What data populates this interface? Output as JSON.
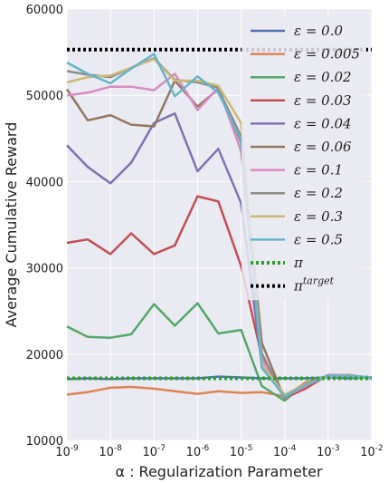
{
  "chart_data": {
    "type": "line",
    "xlabel": "α : Regularization Parameter",
    "ylabel": "Average Cumulative Reward",
    "xscale": "log",
    "xlim": [
      1e-09,
      0.01
    ],
    "ylim": [
      10000,
      60000
    ],
    "grid": true,
    "background": "#eaeaf2",
    "legend_position": "upper-right",
    "y_ticks": [
      "10000",
      "20000",
      "30000",
      "40000",
      "50000",
      "60000"
    ],
    "x_ticks": [
      {
        "base": "10",
        "exp": "-9"
      },
      {
        "base": "10",
        "exp": "-8"
      },
      {
        "base": "10",
        "exp": "-7"
      },
      {
        "base": "10",
        "exp": "-6"
      },
      {
        "base": "10",
        "exp": "-5"
      },
      {
        "base": "10",
        "exp": "-4"
      },
      {
        "base": "10",
        "exp": "-3"
      },
      {
        "base": "10",
        "exp": "-2"
      }
    ],
    "x": [
      1e-09,
      3e-09,
      1e-08,
      3e-08,
      1e-07,
      3e-07,
      1e-06,
      3e-06,
      1e-05,
      3e-05,
      0.0001,
      0.0003,
      0.001,
      0.003,
      0.01
    ],
    "series": [
      {
        "name": "ε = 0.0",
        "label_main": "ε = 0.0",
        "label_sup": "",
        "color": "#4c72b0",
        "dash": "",
        "values": [
          17100,
          17200,
          17100,
          17200,
          17200,
          17200,
          17200,
          17400,
          17300,
          17200,
          17200,
          17200,
          17300,
          17200,
          17300
        ]
      },
      {
        "name": "ε = 0.005",
        "label_main": "ε = 0.005",
        "label_sup": "",
        "color": "#dd8452",
        "dash": "",
        "values": [
          15300,
          15600,
          16100,
          16200,
          16000,
          15700,
          15400,
          15700,
          15500,
          15600,
          15100,
          16700,
          17500,
          17600,
          17200
        ]
      },
      {
        "name": "ε = 0.02",
        "label_main": "ε = 0.02",
        "label_sup": "",
        "color": "#55a868",
        "dash": "",
        "values": [
          23200,
          22000,
          21900,
          22300,
          25800,
          23300,
          25900,
          22400,
          22800,
          16300,
          14600,
          16600,
          17500,
          17400,
          17200
        ]
      },
      {
        "name": "ε = 0.03",
        "label_main": "ε = 0.03",
        "label_sup": "",
        "color": "#c44e52",
        "dash": "",
        "values": [
          32900,
          33300,
          31600,
          34000,
          31600,
          32600,
          38300,
          37700,
          30200,
          19700,
          14900,
          16000,
          17600,
          17500,
          17300
        ]
      },
      {
        "name": "ε = 0.04",
        "label_main": "ε = 0.04",
        "label_sup": "",
        "color": "#8172b2",
        "dash": "",
        "values": [
          44200,
          41700,
          39800,
          42200,
          46800,
          47900,
          41200,
          43800,
          37500,
          18700,
          15000,
          16500,
          17500,
          17500,
          17300
        ]
      },
      {
        "name": "ε = 0.06",
        "label_main": "ε = 0.06",
        "label_sup": "",
        "color": "#937860",
        "dash": "",
        "values": [
          50700,
          47100,
          47700,
          46600,
          46400,
          51700,
          48700,
          50700,
          45200,
          21300,
          14800,
          16500,
          17500,
          17500,
          17300
        ]
      },
      {
        "name": "ε = 0.1",
        "label_main": "ε = 0.1",
        "label_sup": "",
        "color": "#da8bc3",
        "dash": "",
        "values": [
          50000,
          50300,
          51000,
          51000,
          50600,
          52500,
          48300,
          50900,
          43500,
          19400,
          15000,
          16300,
          17600,
          17500,
          17300
        ]
      },
      {
        "name": "ε = 0.2",
        "label_main": "ε = 0.2",
        "label_sup": "",
        "color": "#8c8c8c",
        "dash": "",
        "values": [
          52800,
          52400,
          52100,
          53200,
          54300,
          51800,
          51500,
          50900,
          44500,
          20100,
          14800,
          16600,
          17500,
          17500,
          17300
        ]
      },
      {
        "name": "ε = 0.3",
        "label_main": "ε = 0.3",
        "label_sup": "",
        "color": "#ccb974",
        "dash": "",
        "values": [
          51500,
          52100,
          52300,
          53200,
          54200,
          51700,
          51700,
          51100,
          46800,
          18800,
          15300,
          16500,
          17400,
          17500,
          17300
        ]
      },
      {
        "name": "ε = 0.5",
        "label_main": "ε = 0.5",
        "label_sup": "",
        "color": "#64b5cd",
        "dash": "",
        "values": [
          53800,
          52500,
          51400,
          53100,
          54800,
          49900,
          52200,
          50300,
          44900,
          18400,
          15100,
          16400,
          17500,
          17500,
          17300
        ]
      },
      {
        "name": "π",
        "label_main": "π",
        "label_sup": "",
        "color": "#2ca02c",
        "dash": "3,3",
        "values": [
          17200,
          17200,
          17200,
          17200,
          17200,
          17200,
          17200,
          17200,
          17200,
          17200,
          17200,
          17200,
          17200,
          17200,
          17200
        ]
      },
      {
        "name": "π^target",
        "label_main": "π",
        "label_sup": "target",
        "color": "#000000",
        "dash": "3,3",
        "values": [
          55300,
          55300,
          55300,
          55300,
          55300,
          55300,
          55300,
          55300,
          55300,
          55300,
          55300,
          55300,
          55300,
          55300,
          55300
        ]
      }
    ]
  }
}
